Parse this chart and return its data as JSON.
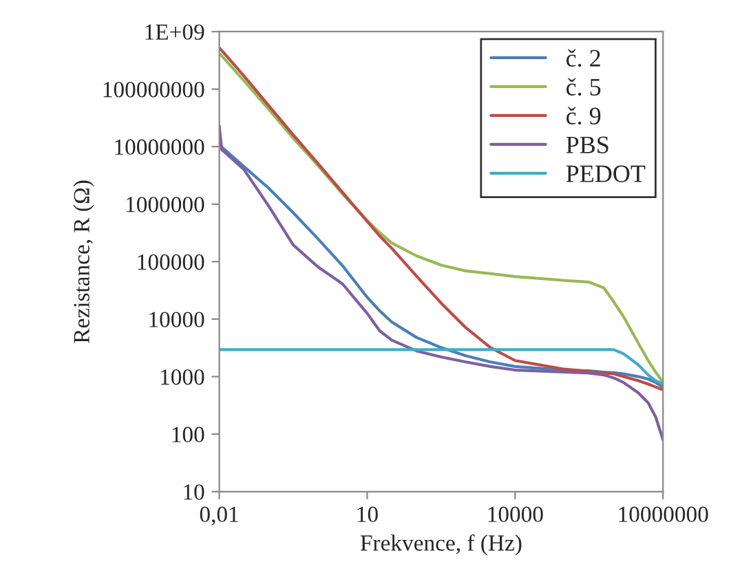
{
  "chart_data": {
    "type": "line",
    "xlabel": "Frekvence, f (Hz)",
    "ylabel": "Rezistance, R (Ω)",
    "log": "xy",
    "grid": false,
    "legend": "top right",
    "marker": "none",
    "line_style": "solid",
    "x": [
      0.01,
      0.0112,
      0.0316,
      0.1,
      0.316,
      1,
      3.16,
      10,
      17.8,
      31.6,
      100,
      316,
      1000,
      3162,
      10000,
      100000,
      316228,
      630957,
      1000000,
      1584893,
      3162278,
      5011872,
      7079458,
      10000000
    ],
    "xlim": [
      0.01,
      10000000
    ],
    "xticks": [
      {
        "value": 0.01,
        "label": "0,01"
      },
      10,
      10000,
      10000000
    ],
    "ylim": [
      10,
      1000000000
    ],
    "yticks": [
      10,
      100,
      1000,
      10000,
      100000,
      1000000,
      10000000,
      100000000,
      {
        "value": 1000000000,
        "label": "1E+09"
      }
    ],
    "series": [
      {
        "name": "č. 2",
        "color": "#4a7ebb",
        "values": [
          11000000.0,
          9800000.0,
          4500000.0,
          1900000.0,
          710000.0,
          250000.0,
          85000.0,
          24000.0,
          14000.0,
          8900,
          4800,
          3200,
          2300,
          1800,
          1500,
          1300,
          1260,
          1200,
          1170,
          1120,
          1000,
          910,
          790,
          660
        ]
      },
      {
        "name": "č. 5",
        "color": "#98b954",
        "values": [
          420000000.0,
          380000000.0,
          140000000.0,
          45000000.0,
          14000000.0,
          4700000.0,
          1500000.0,
          520000.0,
          320000.0,
          210000.0,
          126000.0,
          87000.0,
          69000.0,
          62000.0,
          55000.0,
          47000.0,
          44000.0,
          35000.0,
          20000.0,
          11000.0,
          3800,
          1900,
          1200,
          800
        ]
      },
      {
        "name": "č. 9",
        "color": "#be4b48",
        "values": [
          520000000.0,
          470000000.0,
          170000000.0,
          52000000.0,
          16000000.0,
          5100000.0,
          1600000.0,
          500000.0,
          280000.0,
          170000.0,
          56000.0,
          19000.0,
          7100,
          3200,
          1900,
          1350,
          1230,
          1150,
          1120,
          1000,
          850,
          740,
          660,
          590
        ]
      },
      {
        "name": "PBS",
        "color": "#7d60a0",
        "values": [
          23000000.0,
          8900000.0,
          4000000.0,
          930000.0,
          195000.0,
          81000.0,
          41000.0,
          12600.0,
          6300,
          4300,
          2800,
          2200,
          1800,
          1500,
          1300,
          1200,
          1150,
          1070,
          950,
          790,
          520,
          350,
          200,
          80
        ]
      },
      {
        "name": "PEDOT",
        "color": "#46aac5",
        "values": [
          2950,
          2950,
          2950,
          2950,
          2950,
          2950,
          2950,
          2950,
          2950,
          2950,
          2950,
          2950,
          2950,
          2950,
          2950,
          2950,
          2950,
          2950,
          2950,
          2500,
          1600,
          1070,
          850,
          740
        ]
      }
    ]
  }
}
